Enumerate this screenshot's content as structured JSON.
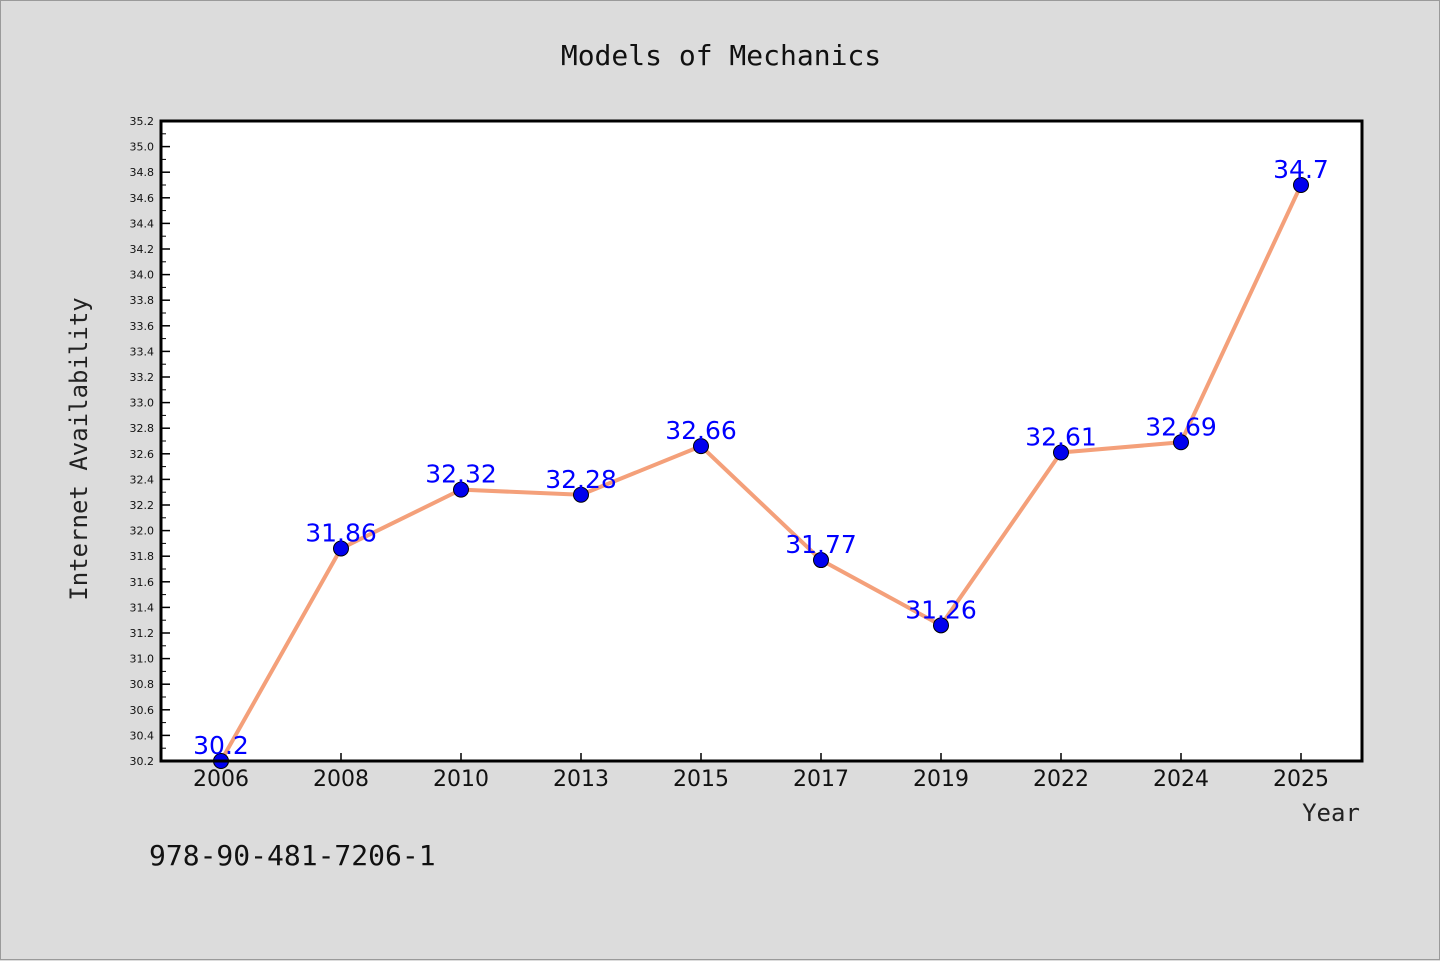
{
  "chart_data": {
    "type": "line",
    "title": "Models of Mechanics",
    "xlabel": "Year",
    "ylabel": "Internet Availability",
    "categories": [
      "2006",
      "2008",
      "2010",
      "2013",
      "2015",
      "2017",
      "2019",
      "2022",
      "2024",
      "2025"
    ],
    "values": [
      30.2,
      31.86,
      32.32,
      32.28,
      32.66,
      31.77,
      31.26,
      32.61,
      32.69,
      34.7
    ],
    "data_labels": [
      "30.2",
      "31.86",
      "32.32",
      "32.28",
      "32.66",
      "31.77",
      "31.26",
      "32.61",
      "32.69",
      "34.7"
    ],
    "ylim": [
      30.2,
      35.2
    ],
    "yticks": [
      30.2,
      30.4,
      30.6,
      30.8,
      31.0,
      31.2,
      31.4,
      31.6,
      31.8,
      32.0,
      32.2,
      32.4,
      32.6,
      32.8,
      33.0,
      33.2,
      33.4,
      33.6,
      33.8,
      34.0,
      34.2,
      34.4,
      34.6,
      34.8,
      35.0,
      35.2
    ],
    "grid": false,
    "line_color": "#f4a07a",
    "marker_color": "#0000ee",
    "label_color": "#0000ff"
  },
  "footer": {
    "isbn": "978-90-481-7206-1"
  }
}
